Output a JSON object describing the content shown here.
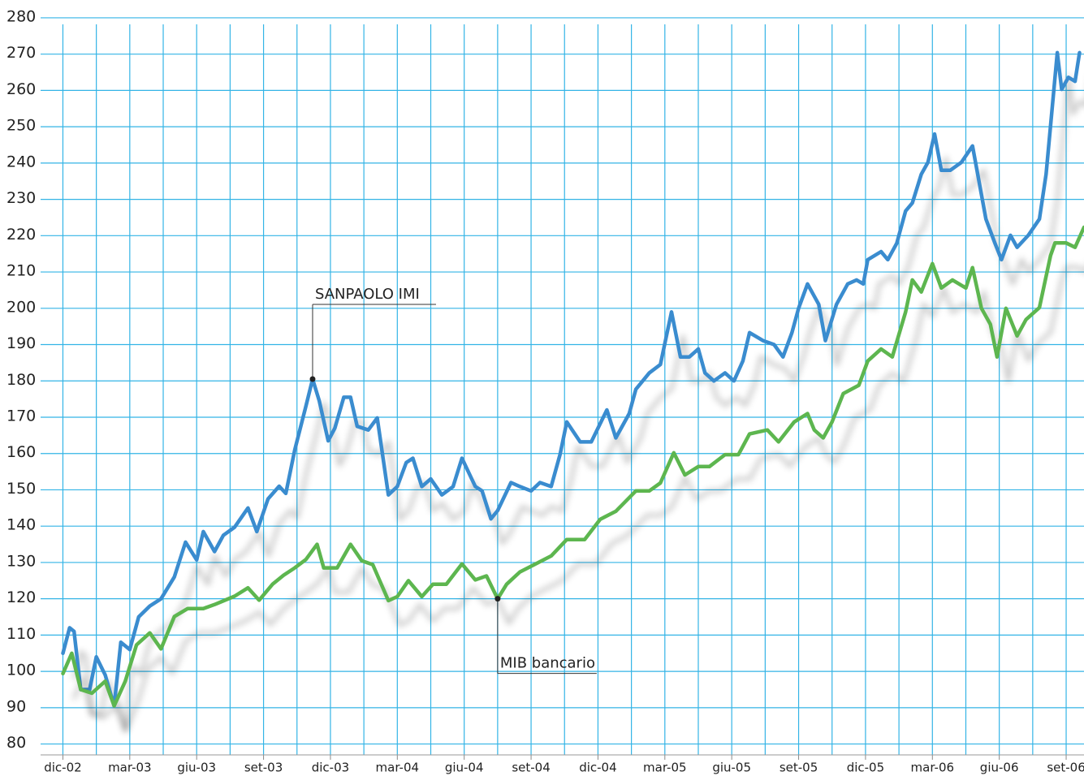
{
  "chart_data": {
    "type": "line",
    "xlim": [
      -1,
      45.8
    ],
    "xticks": [
      {
        "value": 0,
        "label": "dic-02"
      },
      {
        "value": 3,
        "label": "mar-03"
      },
      {
        "value": 6,
        "label": "giu-03"
      },
      {
        "value": 9,
        "label": "set-03"
      },
      {
        "value": 12,
        "label": "dic-03"
      },
      {
        "value": 15,
        "label": "mar-04"
      },
      {
        "value": 18,
        "label": "giu-04"
      },
      {
        "value": 21,
        "label": "set-04"
      },
      {
        "value": 24,
        "label": "dic-04"
      },
      {
        "value": 27,
        "label": "mar-05"
      },
      {
        "value": 30,
        "label": "giu-05"
      },
      {
        "value": 33,
        "label": "set-05"
      },
      {
        "value": 36,
        "label": "dic-05"
      },
      {
        "value": 39,
        "label": "mar-06"
      },
      {
        "value": 42,
        "label": "giu-06"
      },
      {
        "value": 45,
        "label": "set-06"
      }
    ],
    "ylim": [
      77,
      282
    ],
    "yticks": [
      80,
      90,
      100,
      110,
      120,
      130,
      140,
      150,
      160,
      170,
      180,
      190,
      200,
      210,
      220,
      230,
      240,
      250,
      260,
      270,
      280
    ],
    "grid": true,
    "series": [
      {
        "name": "SANPAOLO IMI",
        "color": "#3a8ccf",
        "x": [
          0.0,
          0.3,
          0.5,
          0.8,
          1.2,
          1.5,
          1.9,
          2.3,
          2.6,
          3.0,
          3.4,
          3.9,
          4.4,
          5.0,
          5.5,
          6.0,
          6.3,
          6.8,
          7.2,
          7.7,
          8.3,
          8.7,
          9.2,
          9.7,
          10.0,
          10.4,
          10.9,
          11.2,
          11.5,
          11.9,
          12.2,
          12.6,
          12.9,
          13.2,
          13.7,
          14.1,
          14.6,
          15.0,
          15.4,
          15.7,
          16.1,
          16.5,
          17.0,
          17.5,
          17.9,
          18.5,
          18.8,
          19.2,
          19.5,
          20.1,
          20.5,
          21.0,
          21.4,
          21.9,
          22.3,
          22.6,
          23.2,
          23.7,
          24.4,
          24.8,
          25.4,
          25.7,
          26.3,
          26.8,
          27.3,
          27.7,
          28.1,
          28.5,
          28.8,
          29.2,
          29.7,
          30.1,
          30.5,
          30.8,
          31.4,
          31.9,
          32.3,
          32.7,
          33.0,
          33.4,
          33.9,
          34.2,
          34.7,
          35.2,
          35.6,
          35.9,
          36.1,
          36.7,
          37.0,
          37.4,
          37.8,
          38.1,
          38.5,
          38.8,
          39.1,
          39.4,
          39.8,
          40.3,
          40.8,
          41.0,
          41.4,
          41.8,
          42.1,
          42.5,
          42.8,
          43.3,
          43.8,
          44.1,
          44.6,
          44.8,
          45.1,
          45.4,
          45.6
        ],
        "values": [
          105,
          112,
          111,
          95,
          95,
          104,
          99,
          90.5,
          108,
          106,
          115,
          118,
          120,
          126,
          135.6,
          130.7,
          138.5,
          133,
          137.5,
          139.7,
          145,
          138.5,
          147.5,
          151,
          149,
          161,
          173,
          180.5,
          174.5,
          163.5,
          167,
          175.5,
          175.5,
          167.5,
          166.5,
          169.8,
          148.6,
          150.9,
          157.5,
          158.7,
          150.9,
          153,
          148.6,
          150.9,
          158.7,
          150.9,
          149.7,
          142,
          144.3,
          152,
          150.9,
          149.7,
          152,
          150.9,
          159.8,
          168.7,
          163.2,
          163.2,
          172,
          164.3,
          171,
          177.7,
          182.2,
          184.5,
          199,
          186.6,
          186.6,
          188.8,
          182.2,
          180,
          182.2,
          180,
          185.5,
          193.3,
          191.1,
          190,
          186.6,
          193.3,
          200,
          206.7,
          201.1,
          191.1,
          201.1,
          206.7,
          207.8,
          206.7,
          213.4,
          215.6,
          213.4,
          217.9,
          226.8,
          229,
          236.9,
          240.2,
          248,
          238,
          238,
          240.2,
          244.7,
          238,
          224.6,
          218,
          213.4,
          220.1,
          216.8,
          220.1,
          224.6,
          236.9,
          270.4,
          260.3,
          263.6,
          262.5,
          270.4
        ]
      },
      {
        "name": "MIB bancario",
        "color": "#5db64f",
        "x": [
          0.0,
          0.4,
          0.8,
          1.3,
          1.9,
          2.3,
          2.8,
          3.3,
          3.9,
          4.4,
          5.0,
          5.6,
          6.3,
          6.8,
          7.7,
          8.3,
          8.8,
          9.4,
          9.9,
          10.4,
          10.9,
          11.4,
          11.7,
          12.3,
          12.9,
          13.4,
          13.9,
          14.6,
          15.0,
          15.5,
          16.1,
          16.6,
          17.2,
          17.9,
          18.5,
          19.0,
          19.5,
          19.9,
          20.5,
          21.2,
          21.9,
          22.6,
          23.4,
          24.1,
          24.8,
          25.7,
          26.3,
          26.8,
          27.4,
          27.9,
          28.5,
          29.0,
          29.7,
          30.3,
          30.8,
          31.6,
          32.1,
          32.8,
          33.4,
          33.7,
          34.1,
          34.5,
          35.0,
          35.7,
          36.1,
          36.7,
          37.2,
          37.8,
          38.1,
          38.5,
          39.0,
          39.4,
          39.9,
          40.5,
          40.8,
          41.2,
          41.6,
          41.9,
          42.3,
          42.8,
          43.2,
          43.8,
          44.3,
          44.5,
          45.0,
          45.4,
          45.8
        ],
        "values": [
          99.4,
          105,
          95,
          94,
          97.3,
          90.5,
          97.3,
          107.3,
          110.6,
          106.2,
          115.1,
          117.3,
          117.3,
          118.4,
          120.7,
          123,
          119.6,
          124,
          126.5,
          128.5,
          130.8,
          135,
          128.5,
          128.5,
          135,
          130.5,
          129.4,
          119.5,
          120.6,
          125,
          120.6,
          124,
          124,
          129.6,
          125.2,
          126.3,
          120,
          124,
          127.4,
          129.6,
          131.8,
          136.3,
          136.3,
          141.9,
          144.1,
          149.7,
          149.7,
          151.9,
          160.2,
          154.1,
          156.4,
          156.4,
          159.7,
          159.7,
          165.4,
          166.5,
          163.2,
          168.7,
          171,
          166.5,
          164.3,
          168.7,
          176.5,
          178.8,
          185.5,
          188.8,
          186.6,
          199,
          207.8,
          204.5,
          212.3,
          205.6,
          207.8,
          205.6,
          211.2,
          200,
          195.6,
          186.6,
          200,
          192.4,
          196.9,
          200.2,
          214.5,
          218,
          218,
          216.8,
          222.3
        ]
      }
    ]
  }
}
